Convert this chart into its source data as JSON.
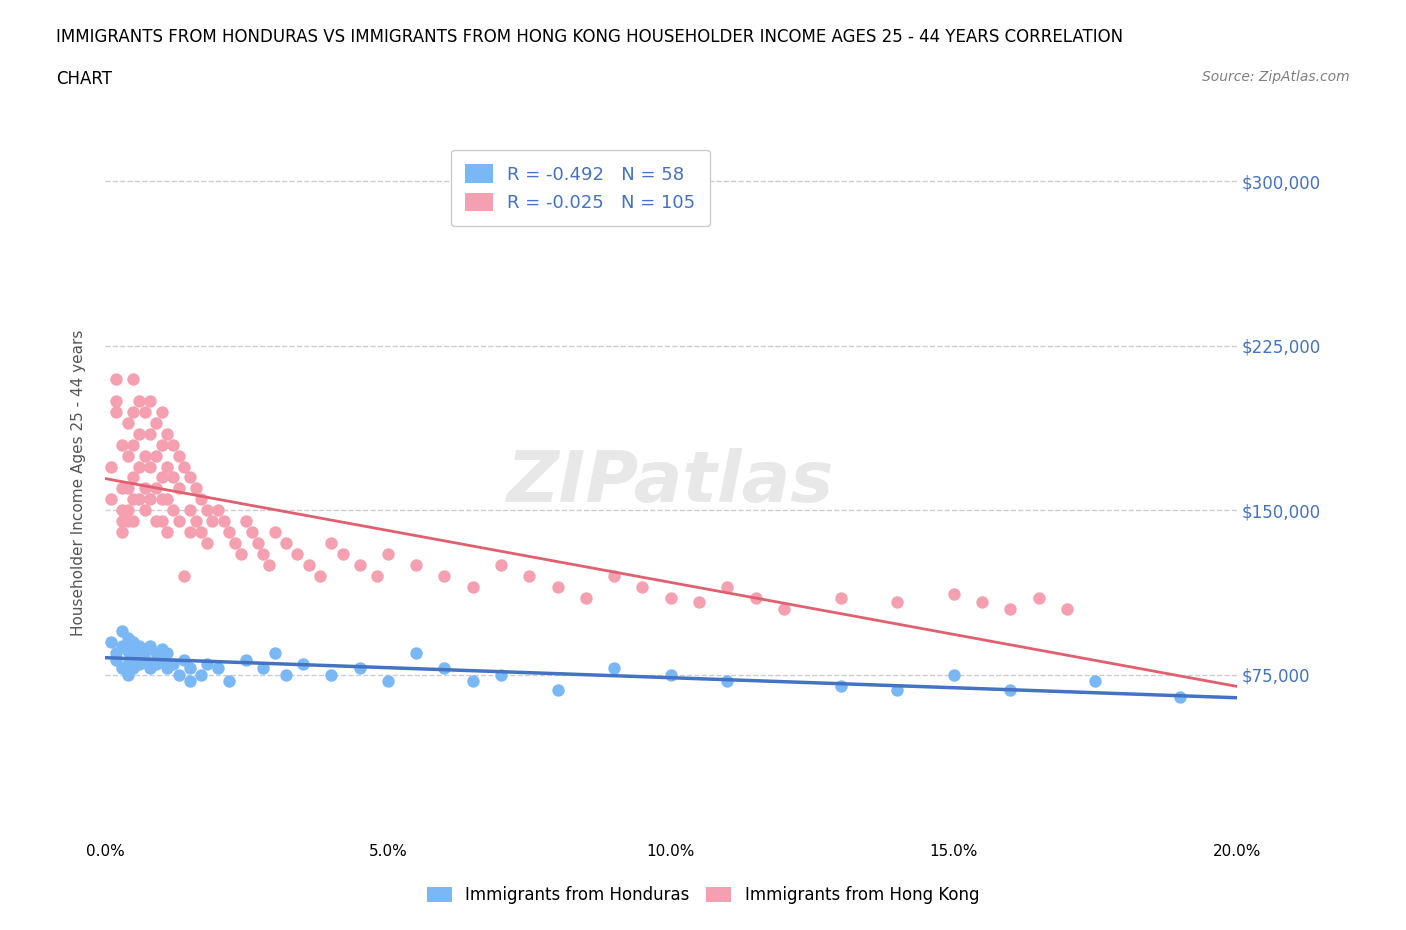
{
  "title_line1": "IMMIGRANTS FROM HONDURAS VS IMMIGRANTS FROM HONG KONG HOUSEHOLDER INCOME AGES 25 - 44 YEARS CORRELATION",
  "title_line2": "CHART",
  "source": "Source: ZipAtlas.com",
  "xlabel": "",
  "ylabel": "Householder Income Ages 25 - 44 years",
  "xlim": [
    0.0,
    0.2
  ],
  "ylim": [
    0,
    325000
  ],
  "yticks": [
    0,
    75000,
    150000,
    225000,
    300000
  ],
  "ytick_labels": [
    "",
    "$75,000",
    "$150,000",
    "$225,000",
    "$300,000"
  ],
  "xticks": [
    0.0,
    0.05,
    0.1,
    0.15,
    0.2
  ],
  "xtick_labels": [
    "0.0%",
    "5.0%",
    "10.0%",
    "15.0%",
    "20.0%"
  ],
  "honduras_color": "#7ab8f5",
  "hong_kong_color": "#f5a0b0",
  "honduras_line_color": "#4472c4",
  "hong_kong_line_color": "#e06070",
  "legend_text_color": "#4472c4",
  "axis_label_color": "#555555",
  "tick_color": "#4472c4",
  "grid_color": "#cccccc",
  "watermark": "ZIPatlas",
  "R_honduras": -0.492,
  "N_honduras": 58,
  "R_hong_kong": -0.025,
  "N_hong_kong": 105,
  "honduras_x": [
    0.001,
    0.002,
    0.002,
    0.003,
    0.003,
    0.003,
    0.004,
    0.004,
    0.004,
    0.004,
    0.005,
    0.005,
    0.005,
    0.005,
    0.006,
    0.006,
    0.006,
    0.007,
    0.007,
    0.008,
    0.008,
    0.009,
    0.009,
    0.01,
    0.01,
    0.011,
    0.011,
    0.012,
    0.013,
    0.014,
    0.015,
    0.015,
    0.017,
    0.018,
    0.02,
    0.022,
    0.025,
    0.028,
    0.03,
    0.032,
    0.035,
    0.04,
    0.045,
    0.05,
    0.055,
    0.06,
    0.065,
    0.07,
    0.08,
    0.09,
    0.1,
    0.11,
    0.13,
    0.14,
    0.15,
    0.16,
    0.175,
    0.19
  ],
  "honduras_y": [
    90000,
    85000,
    82000,
    95000,
    88000,
    78000,
    92000,
    86000,
    80000,
    75000,
    90000,
    85000,
    82000,
    78000,
    88000,
    84000,
    80000,
    86000,
    82000,
    88000,
    78000,
    85000,
    80000,
    87000,
    82000,
    85000,
    78000,
    80000,
    75000,
    82000,
    78000,
    72000,
    75000,
    80000,
    78000,
    72000,
    82000,
    78000,
    85000,
    75000,
    80000,
    75000,
    78000,
    72000,
    85000,
    78000,
    72000,
    75000,
    68000,
    78000,
    75000,
    72000,
    70000,
    68000,
    75000,
    68000,
    72000,
    65000
  ],
  "hong_kong_x": [
    0.001,
    0.001,
    0.002,
    0.002,
    0.002,
    0.003,
    0.003,
    0.003,
    0.003,
    0.003,
    0.004,
    0.004,
    0.004,
    0.004,
    0.004,
    0.005,
    0.005,
    0.005,
    0.005,
    0.005,
    0.005,
    0.006,
    0.006,
    0.006,
    0.006,
    0.007,
    0.007,
    0.007,
    0.007,
    0.008,
    0.008,
    0.008,
    0.008,
    0.009,
    0.009,
    0.009,
    0.009,
    0.01,
    0.01,
    0.01,
    0.01,
    0.01,
    0.011,
    0.011,
    0.011,
    0.011,
    0.012,
    0.012,
    0.012,
    0.013,
    0.013,
    0.013,
    0.014,
    0.014,
    0.015,
    0.015,
    0.015,
    0.016,
    0.016,
    0.017,
    0.017,
    0.018,
    0.018,
    0.019,
    0.02,
    0.021,
    0.022,
    0.023,
    0.024,
    0.025,
    0.026,
    0.027,
    0.028,
    0.029,
    0.03,
    0.032,
    0.034,
    0.036,
    0.038,
    0.04,
    0.042,
    0.045,
    0.048,
    0.05,
    0.055,
    0.06,
    0.065,
    0.07,
    0.075,
    0.08,
    0.085,
    0.09,
    0.095,
    0.1,
    0.105,
    0.11,
    0.115,
    0.12,
    0.13,
    0.14,
    0.15,
    0.155,
    0.16,
    0.165,
    0.17
  ],
  "hong_kong_y": [
    155000,
    170000,
    200000,
    210000,
    195000,
    180000,
    160000,
    150000,
    145000,
    140000,
    190000,
    175000,
    160000,
    150000,
    145000,
    210000,
    195000,
    180000,
    165000,
    155000,
    145000,
    200000,
    185000,
    170000,
    155000,
    195000,
    175000,
    160000,
    150000,
    200000,
    185000,
    170000,
    155000,
    190000,
    175000,
    160000,
    145000,
    195000,
    180000,
    165000,
    155000,
    145000,
    185000,
    170000,
    155000,
    140000,
    180000,
    165000,
    150000,
    175000,
    160000,
    145000,
    170000,
    120000,
    165000,
    150000,
    140000,
    160000,
    145000,
    155000,
    140000,
    150000,
    135000,
    145000,
    150000,
    145000,
    140000,
    135000,
    130000,
    145000,
    140000,
    135000,
    130000,
    125000,
    140000,
    135000,
    130000,
    125000,
    120000,
    135000,
    130000,
    125000,
    120000,
    130000,
    125000,
    120000,
    115000,
    125000,
    120000,
    115000,
    110000,
    120000,
    115000,
    110000,
    108000,
    115000,
    110000,
    105000,
    110000,
    108000,
    112000,
    108000,
    105000,
    110000,
    105000
  ]
}
